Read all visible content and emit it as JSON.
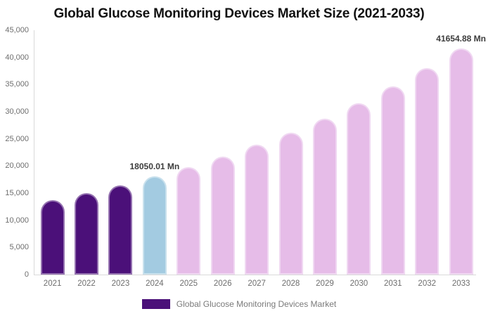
{
  "title": "Global Glucose Monitoring Devices Market Size (2021-2033)",
  "legend": {
    "label": "Global Glucose Monitoring Devices Market"
  },
  "colors": {
    "past": "#4B1079",
    "base_year": "#A3CBE1",
    "forecast": "#E6BCE8",
    "axis_line": "#D9D9D9",
    "axis_text": "#6E6E6E",
    "data_label": "#3C3C3C",
    "legend_text": "#7A7A7A"
  },
  "chart_data": {
    "type": "bar",
    "title": "Global Glucose Monitoring Devices Market Size (2021-2033)",
    "unit": "Mn",
    "xlabel": "",
    "ylabel": "",
    "grid": false,
    "legend_position": "bottom",
    "legend_entries": [
      "Global Glucose Monitoring Devices Market"
    ],
    "ylim": [
      0,
      45000
    ],
    "ytick_step": 5000,
    "yticks": [
      {
        "value": 0,
        "label": "0"
      },
      {
        "value": 5000,
        "label": "5,000"
      },
      {
        "value": 10000,
        "label": "10,000"
      },
      {
        "value": 15000,
        "label": "15,000"
      },
      {
        "value": 20000,
        "label": "20,000"
      },
      {
        "value": 25000,
        "label": "25,000"
      },
      {
        "value": 30000,
        "label": "30,000"
      },
      {
        "value": 35000,
        "label": "35,000"
      },
      {
        "value": 40000,
        "label": "40,000"
      },
      {
        "value": 45000,
        "label": "45,000"
      }
    ],
    "categories": [
      "2021",
      "2022",
      "2023",
      "2024",
      "2025",
      "2026",
      "2027",
      "2028",
      "2029",
      "2030",
      "2031",
      "2032",
      "2033"
    ],
    "values": [
      13660,
      14990,
      16450,
      18050.01,
      19810,
      21740,
      23860,
      26180,
      28730,
      31530,
      34600,
      37970,
      41654.88
    ],
    "bar_roles": [
      "past",
      "past",
      "past",
      "base_year",
      "forecast",
      "forecast",
      "forecast",
      "forecast",
      "forecast",
      "forecast",
      "forecast",
      "forecast",
      "forecast"
    ],
    "data_labels": [
      {
        "category": "2024",
        "text": "18050.01 Mn"
      },
      {
        "category": "2033",
        "text": "41654.88 Mn"
      }
    ]
  }
}
